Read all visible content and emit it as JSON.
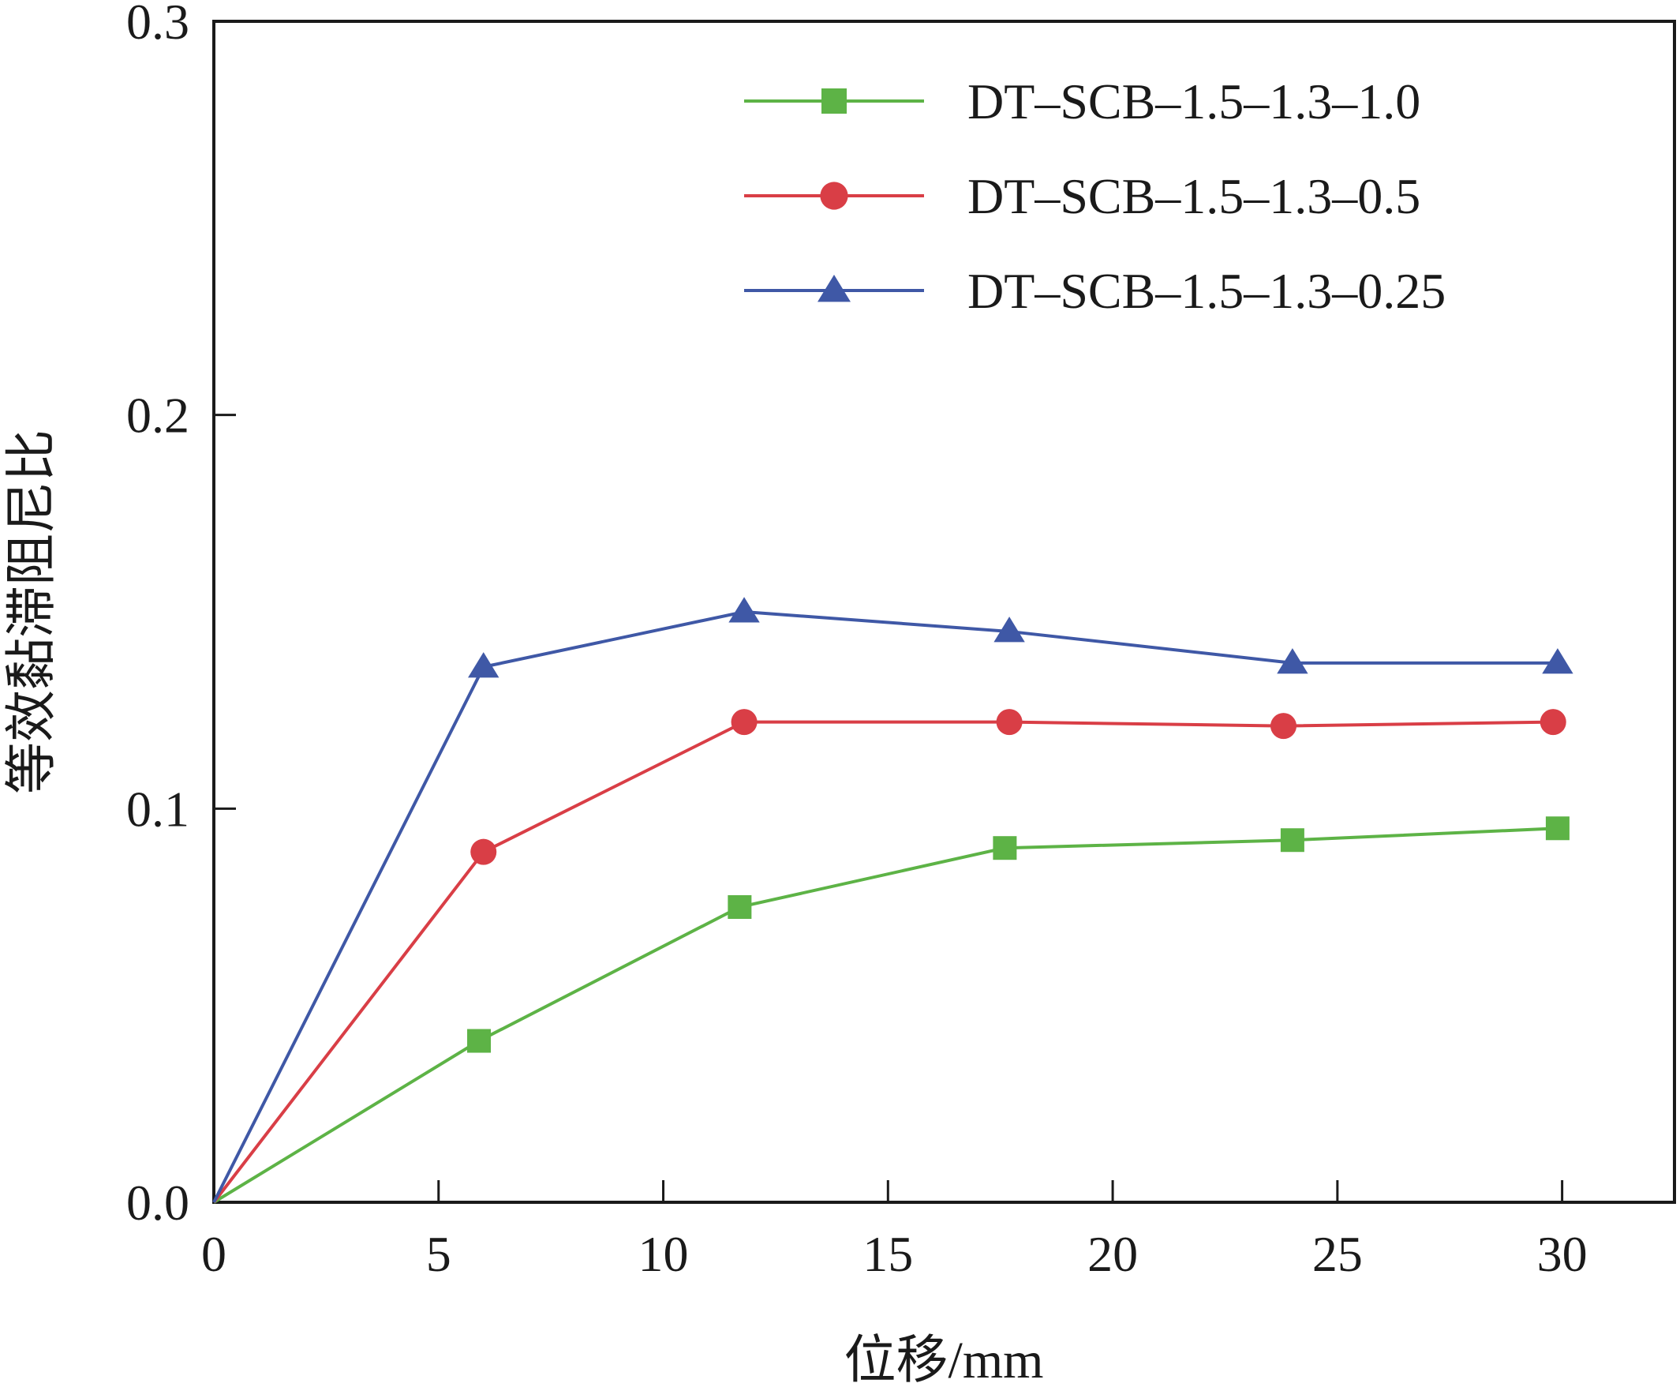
{
  "chart_data": {
    "type": "line",
    "xlabel": "位移/mm",
    "ylabel": "等效黏滞阻尼比",
    "xlim": [
      0,
      32.5
    ],
    "ylim": [
      0,
      0.3
    ],
    "xticks": [
      0,
      5,
      10,
      15,
      20,
      25,
      30
    ],
    "xtick_labels": [
      "0",
      "5",
      "10",
      "15",
      "20",
      "25",
      "30"
    ],
    "yticks": [
      0,
      0.1,
      0.2,
      0.3
    ],
    "ytick_labels": [
      "0.0",
      "0.1",
      "0.2",
      "0.3"
    ],
    "grid": false,
    "legend_position": "top-right",
    "series": [
      {
        "name": "DT–SCB–1.5–1.3–1.0",
        "color": "#5db346",
        "marker": "square",
        "x": [
          0,
          5.9,
          11.7,
          17.6,
          24.0,
          29.9
        ],
        "y": [
          0,
          0.041,
          0.075,
          0.09,
          0.092,
          0.095
        ]
      },
      {
        "name": "DT–SCB–1.5–1.3–0.5",
        "color": "#d93e46",
        "marker": "circle",
        "x": [
          0,
          6.0,
          11.8,
          17.7,
          23.8,
          29.8
        ],
        "y": [
          0,
          0.089,
          0.122,
          0.122,
          0.121,
          0.122
        ]
      },
      {
        "name": "DT–SCB–1.5–1.3–0.25",
        "color": "#3f58a6",
        "marker": "triangle",
        "x": [
          0,
          6.0,
          11.8,
          17.7,
          24.0,
          29.9
        ],
        "y": [
          0,
          0.136,
          0.15,
          0.145,
          0.137,
          0.137
        ]
      }
    ]
  }
}
